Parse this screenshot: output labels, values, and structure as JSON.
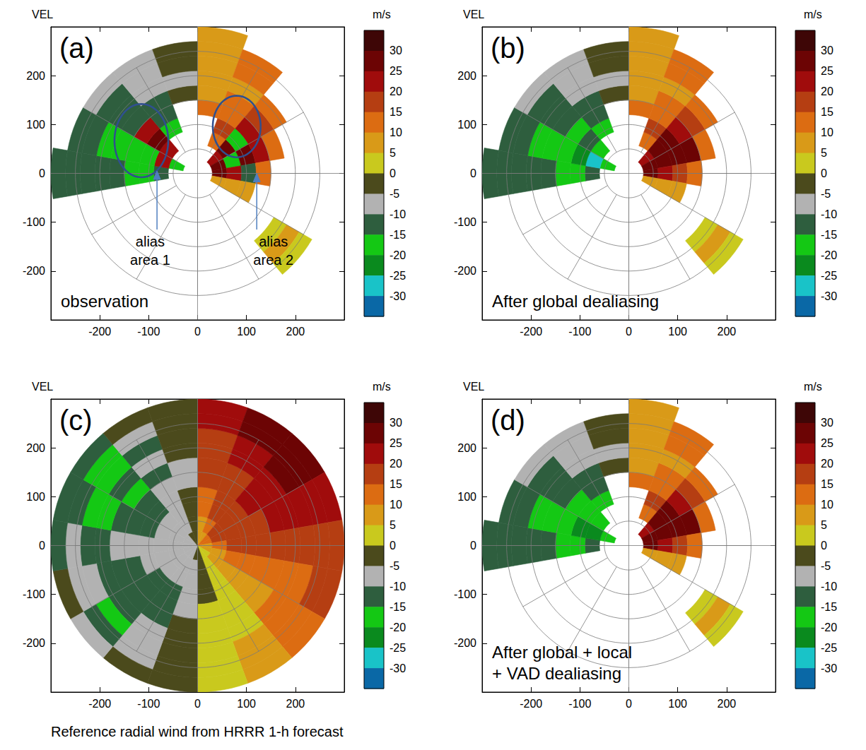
{
  "chart_data": [
    {
      "type": "heatmap",
      "letter": "(a)",
      "quantity": "VEL",
      "unit": "m/s",
      "label": [
        "observation"
      ],
      "xlim": [
        -300,
        300
      ],
      "ylim": [
        -300,
        300
      ],
      "xticks": [
        -200,
        -100,
        0,
        100,
        200
      ],
      "yticks": [
        -200,
        -100,
        0,
        100,
        200
      ],
      "azimuth_bins": [
        0,
        20,
        40,
        60,
        80,
        100,
        120,
        140,
        160,
        180,
        200,
        220,
        240,
        260,
        280,
        300,
        320,
        340,
        360
      ],
      "range_bins": [
        0,
        30,
        60,
        90,
        120,
        150,
        180,
        210,
        240,
        270,
        300
      ],
      "range_rings": [
        50,
        100,
        150,
        200,
        250
      ],
      "azimuth_lines": [
        0,
        30,
        60,
        90,
        120,
        150,
        180,
        210,
        240,
        270,
        300,
        330
      ],
      "cells": [
        [
          null,
          null,
          null,
          null,
          null,
          null,
          null,
          null,
          null,
          null,
          null,
          null,
          null,
          null,
          null,
          null,
          null,
          null
        ],
        [
          null,
          null,
          22,
          27,
          25,
          5,
          null,
          null,
          null,
          null,
          null,
          null,
          null,
          null,
          -18,
          null,
          null,
          null
        ],
        [
          null,
          12,
          25,
          -20,
          22,
          7,
          null,
          null,
          null,
          null,
          null,
          null,
          null,
          -15,
          22,
          20,
          null,
          null
        ],
        [
          null,
          15,
          -18,
          25,
          -15,
          5,
          null,
          null,
          null,
          null,
          null,
          null,
          null,
          -18,
          -20,
          25,
          -18,
          null
        ],
        [
          10,
          12,
          22,
          20,
          12,
          null,
          null,
          null,
          null,
          null,
          null,
          null,
          null,
          -17,
          -20,
          22,
          -15,
          null
        ],
        [
          8,
          10,
          15,
          10,
          null,
          null,
          null,
          null,
          null,
          null,
          null,
          null,
          null,
          -15,
          -18,
          -15,
          -12,
          -5
        ],
        [
          7,
          8,
          12,
          null,
          null,
          null,
          3,
          null,
          null,
          null,
          null,
          null,
          null,
          -15,
          -17,
          -13,
          -10,
          -7
        ],
        [
          5,
          10,
          null,
          null,
          null,
          null,
          5,
          null,
          null,
          null,
          null,
          null,
          null,
          -13,
          -15,
          -12,
          -8,
          -5
        ],
        [
          5,
          12,
          null,
          null,
          null,
          null,
          3,
          null,
          null,
          null,
          null,
          null,
          null,
          -12,
          -13,
          -10,
          -8,
          -3
        ],
        [
          5,
          null,
          null,
          null,
          null,
          null,
          null,
          null,
          null,
          null,
          null,
          null,
          null,
          -12,
          null,
          null,
          null,
          null
        ]
      ],
      "colorbar": {
        "levels": [
          -30,
          -25,
          -20,
          -15,
          -10,
          -5,
          0,
          5,
          10,
          15,
          20,
          25,
          30
        ],
        "colors": [
          "#0a68a6",
          "#19c3c8",
          "#0a8a1e",
          "#14c814",
          "#2e5e3e",
          "#b2b2b2",
          "#4b4a1c",
          "#c9c91e",
          "#d99a18",
          "#dc6c12",
          "#b53e12",
          "#a00c0c",
          "#6c0404",
          "#3e0606"
        ]
      },
      "annotations": [
        {
          "text": [
            "alias",
            "area 1"
          ],
          "x": -97,
          "y": -120,
          "arrow": [
            [
              -83,
              -115
            ],
            [
              -83,
              5
            ]
          ],
          "ellipse": {
            "x": -115,
            "y": 67,
            "rx": 55,
            "ry": 75
          }
        },
        {
          "text": [
            "alias",
            "area 2"
          ],
          "x": 155,
          "y": -120,
          "arrow": [
            [
              121,
              -115
            ],
            [
              121,
              0
            ]
          ],
          "ellipse": {
            "x": 80,
            "y": 96,
            "rx": 49,
            "ry": 63
          }
        }
      ]
    },
    {
      "type": "heatmap",
      "letter": "(b)",
      "quantity": "VEL",
      "unit": "m/s",
      "label": [
        "After global dealiasing"
      ],
      "xlim": [
        -300,
        300
      ],
      "ylim": [
        -300,
        300
      ],
      "xticks": [
        -200,
        -100,
        0,
        100,
        200
      ],
      "yticks": [
        -200,
        -100,
        0,
        100,
        200
      ],
      "azimuth_bins": [
        0,
        20,
        40,
        60,
        80,
        100,
        120,
        140,
        160,
        180,
        200,
        220,
        240,
        260,
        280,
        300,
        320,
        340,
        360
      ],
      "range_bins": [
        0,
        30,
        60,
        90,
        120,
        150,
        180,
        210,
        240,
        270,
        300
      ],
      "range_rings": [
        50,
        100,
        150,
        200,
        250
      ],
      "azimuth_lines": [
        0,
        30,
        60,
        90,
        120,
        150,
        180,
        210,
        240,
        270,
        300,
        330
      ],
      "cells": [
        [
          null,
          null,
          null,
          null,
          null,
          null,
          null,
          null,
          null,
          null,
          null,
          null,
          null,
          null,
          null,
          null,
          null,
          null
        ],
        [
          null,
          null,
          22,
          27,
          25,
          5,
          null,
          null,
          null,
          null,
          null,
          null,
          null,
          null,
          -18,
          null,
          null,
          null
        ],
        [
          null,
          12,
          25,
          28,
          22,
          7,
          null,
          null,
          null,
          null,
          null,
          null,
          null,
          -15,
          -27,
          -18,
          null,
          null
        ],
        [
          null,
          15,
          27,
          28,
          18,
          5,
          null,
          null,
          null,
          null,
          null,
          null,
          null,
          -18,
          -22,
          -15,
          -18,
          null
        ],
        [
          10,
          12,
          22,
          25,
          12,
          null,
          null,
          null,
          null,
          null,
          null,
          null,
          null,
          -17,
          -20,
          -18,
          -15,
          null
        ],
        [
          8,
          10,
          15,
          10,
          null,
          null,
          null,
          null,
          null,
          null,
          null,
          null,
          null,
          -15,
          -18,
          -15,
          -12,
          -5
        ],
        [
          7,
          8,
          12,
          null,
          null,
          null,
          3,
          null,
          null,
          null,
          null,
          null,
          null,
          -15,
          -17,
          -13,
          -10,
          -7
        ],
        [
          5,
          10,
          null,
          null,
          null,
          null,
          5,
          null,
          null,
          null,
          null,
          null,
          null,
          -13,
          -15,
          -12,
          -8,
          -5
        ],
        [
          5,
          12,
          null,
          null,
          null,
          null,
          3,
          null,
          null,
          null,
          null,
          null,
          null,
          -12,
          -13,
          -10,
          -8,
          -3
        ],
        [
          5,
          null,
          null,
          null,
          null,
          null,
          null,
          null,
          null,
          null,
          null,
          null,
          null,
          -12,
          null,
          null,
          null,
          null
        ]
      ],
      "colorbar": {
        "levels": [
          -30,
          -25,
          -20,
          -15,
          -10,
          -5,
          0,
          5,
          10,
          15,
          20,
          25,
          30
        ],
        "colors": [
          "#0a68a6",
          "#19c3c8",
          "#0a8a1e",
          "#14c814",
          "#2e5e3e",
          "#b2b2b2",
          "#4b4a1c",
          "#c9c91e",
          "#d99a18",
          "#dc6c12",
          "#b53e12",
          "#a00c0c",
          "#6c0404",
          "#3e0606"
        ]
      }
    },
    {
      "type": "heatmap",
      "letter": "(c)",
      "quantity": "VEL",
      "unit": "m/s",
      "label": [],
      "caption": "Reference radial wind from HRRR 1-h forecast",
      "xlim": [
        -300,
        300
      ],
      "ylim": [
        -300,
        300
      ],
      "xticks": [
        -200,
        -100,
        0,
        100,
        200
      ],
      "yticks": [
        -200,
        -100,
        0,
        100,
        200
      ],
      "azimuth_bins": [
        0,
        20,
        40,
        60,
        80,
        100,
        120,
        140,
        160,
        180,
        200,
        220,
        240,
        260,
        280,
        300,
        320,
        340,
        360
      ],
      "range_bins": [
        0,
        30,
        60,
        90,
        120,
        150,
        180,
        210,
        240,
        270,
        300
      ],
      "range_rings": [
        50,
        100,
        150,
        200,
        250
      ],
      "azimuth_lines": [
        0,
        30,
        60,
        90,
        120,
        150,
        180,
        210,
        240,
        270,
        300,
        330
      ],
      "cells": [
        [
          5,
          8,
          10,
          10,
          8,
          5,
          3,
          0,
          -3,
          -5,
          -7,
          -7,
          -7,
          -7,
          -7,
          -7,
          -5,
          -2
        ],
        [
          8,
          12,
          15,
          15,
          12,
          8,
          5,
          2,
          -2,
          -7,
          -8,
          -8,
          -8,
          -8,
          -8,
          -8,
          -7,
          -3
        ],
        [
          10,
          15,
          18,
          18,
          15,
          10,
          5,
          3,
          -2,
          -8,
          -10,
          -8,
          -8,
          -8,
          -10,
          -10,
          -8,
          -5
        ],
        [
          12,
          15,
          18,
          18,
          15,
          10,
          8,
          3,
          -2,
          -8,
          -12,
          -12,
          -10,
          -8,
          -12,
          -12,
          -8,
          -5
        ],
        [
          15,
          18,
          20,
          18,
          15,
          10,
          8,
          3,
          0,
          -7,
          -12,
          -12,
          -12,
          -10,
          -15,
          -13,
          -10,
          -7
        ],
        [
          15,
          18,
          20,
          20,
          15,
          12,
          8,
          3,
          0,
          -5,
          -12,
          -13,
          -12,
          -10,
          -13,
          -17,
          -12,
          -8
        ],
        [
          15,
          20,
          22,
          20,
          18,
          12,
          10,
          3,
          2,
          -3,
          -10,
          -15,
          -12,
          -12,
          -18,
          -15,
          -10,
          -3
        ],
        [
          18,
          22,
          25,
          22,
          18,
          12,
          10,
          5,
          2,
          -3,
          -8,
          -18,
          -10,
          -13,
          -17,
          -18,
          -13,
          -2
        ],
        [
          20,
          25,
          27,
          22,
          18,
          15,
          10,
          5,
          3,
          -3,
          -8,
          -13,
          -8,
          -10,
          -15,
          -17,
          -7,
          -3
        ],
        [
          20,
          27,
          28,
          22,
          18,
          15,
          10,
          5,
          3,
          -3,
          -5,
          -8,
          -5,
          -15,
          -13,
          -13,
          -3,
          -2
        ]
      ],
      "colorbar": {
        "levels": [
          -30,
          -25,
          -20,
          -15,
          -10,
          -5,
          0,
          5,
          10,
          15,
          20,
          25,
          30
        ],
        "colors": [
          "#0a68a6",
          "#19c3c8",
          "#0a8a1e",
          "#14c814",
          "#2e5e3e",
          "#b2b2b2",
          "#4b4a1c",
          "#c9c91e",
          "#d99a18",
          "#dc6c12",
          "#b53e12",
          "#a00c0c",
          "#6c0404",
          "#3e0606"
        ]
      }
    },
    {
      "type": "heatmap",
      "letter": "(d)",
      "quantity": "VEL",
      "unit": "m/s",
      "label": [
        "After global + local",
        "+ VAD dealiasing"
      ],
      "xlim": [
        -300,
        300
      ],
      "ylim": [
        -300,
        300
      ],
      "xticks": [
        -200,
        -100,
        0,
        100,
        200
      ],
      "yticks": [
        -200,
        -100,
        0,
        100,
        200
      ],
      "azimuth_bins": [
        0,
        20,
        40,
        60,
        80,
        100,
        120,
        140,
        160,
        180,
        200,
        220,
        240,
        260,
        280,
        300,
        320,
        340,
        360
      ],
      "range_bins": [
        0,
        30,
        60,
        90,
        120,
        150,
        180,
        210,
        240,
        270,
        300
      ],
      "range_rings": [
        50,
        100,
        150,
        200,
        250
      ],
      "azimuth_lines": [
        0,
        30,
        60,
        90,
        120,
        150,
        180,
        210,
        240,
        270,
        300,
        330
      ],
      "cells": [
        [
          null,
          null,
          null,
          null,
          null,
          null,
          null,
          null,
          null,
          null,
          null,
          null,
          null,
          null,
          null,
          null,
          null,
          null
        ],
        [
          null,
          null,
          22,
          27,
          25,
          5,
          null,
          null,
          null,
          null,
          null,
          null,
          null,
          null,
          -18,
          null,
          null,
          null
        ],
        [
          null,
          12,
          25,
          28,
          22,
          7,
          null,
          null,
          null,
          null,
          null,
          null,
          null,
          -15,
          -25,
          -18,
          null,
          null
        ],
        [
          null,
          15,
          27,
          28,
          18,
          5,
          null,
          null,
          null,
          null,
          null,
          null,
          null,
          -18,
          -22,
          -20,
          -18,
          null
        ],
        [
          10,
          12,
          22,
          25,
          12,
          null,
          null,
          null,
          null,
          null,
          null,
          null,
          null,
          -17,
          -20,
          -18,
          -15,
          null
        ],
        [
          8,
          10,
          15,
          10,
          null,
          null,
          null,
          null,
          null,
          null,
          null,
          null,
          null,
          -15,
          -18,
          -15,
          -12,
          -5
        ],
        [
          7,
          8,
          12,
          null,
          null,
          null,
          3,
          null,
          null,
          null,
          null,
          null,
          null,
          -15,
          -17,
          -13,
          -10,
          -7
        ],
        [
          5,
          10,
          null,
          null,
          null,
          null,
          5,
          null,
          null,
          null,
          null,
          null,
          null,
          -13,
          -15,
          -12,
          -8,
          -5
        ],
        [
          5,
          12,
          null,
          null,
          null,
          null,
          3,
          null,
          null,
          null,
          null,
          null,
          null,
          -12,
          -13,
          -10,
          -8,
          -3
        ],
        [
          5,
          null,
          null,
          null,
          null,
          null,
          null,
          null,
          null,
          null,
          null,
          null,
          null,
          -12,
          null,
          null,
          null,
          null
        ]
      ],
      "colorbar": {
        "levels": [
          -30,
          -25,
          -20,
          -15,
          -10,
          -5,
          0,
          5,
          10,
          15,
          20,
          25,
          30
        ],
        "colors": [
          "#0a68a6",
          "#19c3c8",
          "#0a8a1e",
          "#14c814",
          "#2e5e3e",
          "#b2b2b2",
          "#4b4a1c",
          "#c9c91e",
          "#d99a18",
          "#dc6c12",
          "#b53e12",
          "#a00c0c",
          "#6c0404",
          "#3e0606"
        ]
      }
    }
  ]
}
